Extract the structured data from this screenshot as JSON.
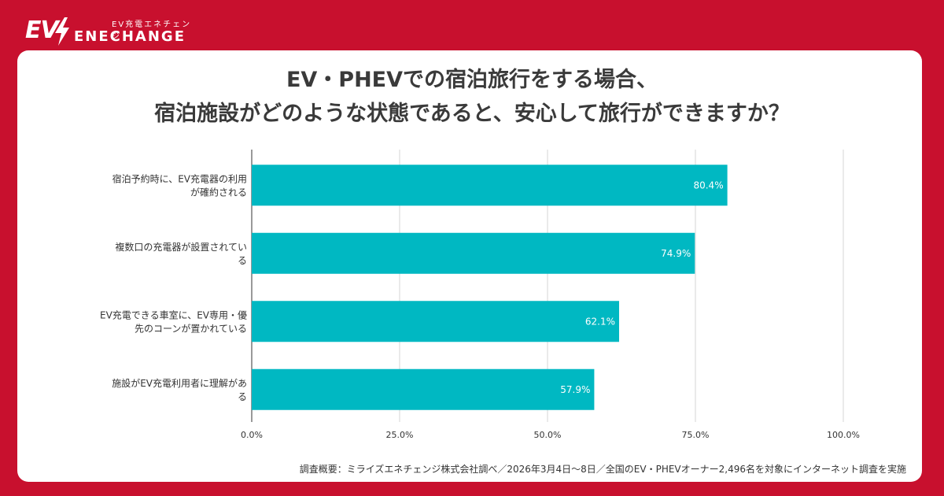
{
  "brand": {
    "logo_mark": "EV",
    "tagline": "EV充電エネチェンジ",
    "name": "ENECHANGE",
    "bolt_icon": "lightning-bolt-icon"
  },
  "colors": {
    "background": "#c8102e",
    "bar": "#00b8c2",
    "card": "#ffffff"
  },
  "title_lines": [
    "EV・PHEVでの宿泊旅行をする場合、",
    "宿泊施設がどのような状態であると、安心して旅行ができますか？"
  ],
  "footnote": "調査概要：ミライズエネチェンジ株式会社調べ／2026年3月4日〜8日／全国のEV・PHEVオーナー2,496名を対象にインターネット調査を実施",
  "chart_data": {
    "type": "bar",
    "orientation": "horizontal",
    "categories": [
      [
        "宿泊予約時に、EV充電器の利用",
        "が確約される"
      ],
      [
        "複数口の充電器が設置されてい",
        "る"
      ],
      [
        "EV充電できる車室に、EV専用・優",
        "先のコーンが置かれている"
      ],
      [
        "施設がEV充電利用者に理解があ",
        "る"
      ]
    ],
    "values": [
      80.4,
      74.9,
      62.1,
      57.9
    ],
    "data_labels": [
      "80.4%",
      "74.9%",
      "62.1%",
      "57.9%"
    ],
    "xlim": [
      0,
      100
    ],
    "ticks": [
      0,
      25,
      50,
      75,
      100
    ],
    "tick_labels": [
      "0.0%",
      "25.0%",
      "50.0%",
      "75.0%",
      "100.0%"
    ],
    "grid": true,
    "legend": "none"
  }
}
